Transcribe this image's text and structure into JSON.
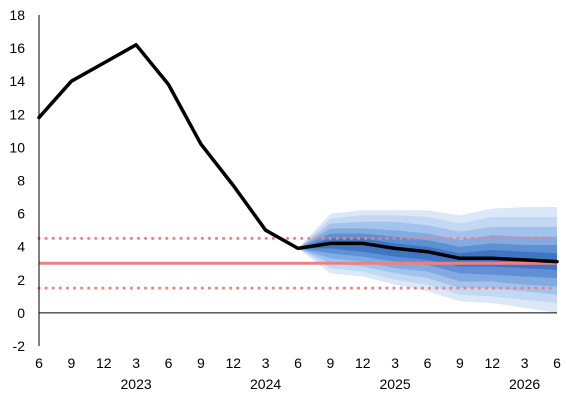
{
  "chart_data": {
    "type": "line",
    "title": "",
    "xlabel": "",
    "ylabel": "",
    "ylim": [
      -2,
      18
    ],
    "y_ticks": [
      "-2",
      "0",
      "2",
      "4",
      "6",
      "8",
      "10",
      "12",
      "14",
      "16",
      "18"
    ],
    "x_tick_labels": [
      "6",
      "9",
      "12",
      "3",
      "6",
      "9",
      "12",
      "3",
      "6",
      "9",
      "12",
      "3",
      "6",
      "9",
      "12",
      "3",
      "6"
    ],
    "year_labels": [
      {
        "label": "2023",
        "index": 3
      },
      {
        "label": "2024",
        "index": 7
      },
      {
        "label": "2025",
        "index": 11
      },
      {
        "label": "2026",
        "index": 15
      }
    ],
    "grid": false,
    "legend": "none",
    "series": [
      {
        "values": [
          11.8,
          14.0,
          15.1,
          16.2,
          13.8,
          10.2,
          7.7,
          5.0,
          3.9,
          4.2,
          4.2,
          3.9,
          3.7,
          3.3,
          3.3,
          3.2,
          3.1
        ],
        "color": "#000000",
        "start_index": 0
      }
    ],
    "reference_lines": [
      {
        "y": 3.0,
        "style": "solid",
        "color": "#f08080"
      },
      {
        "y": 4.5,
        "style": "dotted",
        "color": "#f08080"
      },
      {
        "y": 1.5,
        "style": "dotted",
        "color": "#f08080"
      }
    ],
    "fan": {
      "start_index": 8,
      "colors": [
        "#dbe8f8",
        "#c2d8f3",
        "#a4c3ec",
        "#82abe2",
        "#5e90d4",
        "#3f76c4"
      ],
      "upper": [
        [
          3.9,
          6.0,
          6.2,
          6.2,
          6.2,
          5.9,
          6.3,
          6.4,
          6.4
        ],
        [
          3.9,
          5.7,
          5.9,
          5.9,
          5.8,
          5.4,
          5.8,
          5.8,
          5.8
        ],
        [
          3.9,
          5.4,
          5.5,
          5.5,
          5.3,
          4.9,
          5.2,
          5.2,
          5.2
        ],
        [
          3.9,
          5.1,
          5.1,
          5.0,
          4.8,
          4.4,
          4.7,
          4.6,
          4.6
        ],
        [
          3.9,
          4.8,
          4.8,
          4.6,
          4.4,
          4.0,
          4.2,
          4.1,
          4.1
        ],
        [
          3.9,
          4.5,
          4.5,
          4.2,
          4.0,
          3.6,
          3.8,
          3.7,
          3.6
        ]
      ],
      "lower": [
        [
          3.9,
          2.4,
          2.2,
          1.7,
          1.3,
          0.7,
          0.6,
          0.3,
          0.0
        ],
        [
          3.9,
          2.7,
          2.5,
          2.0,
          1.7,
          1.1,
          1.0,
          0.8,
          0.6
        ],
        [
          3.9,
          3.0,
          2.8,
          2.4,
          2.1,
          1.5,
          1.5,
          1.3,
          1.1
        ],
        [
          3.9,
          3.3,
          3.1,
          2.7,
          2.5,
          1.9,
          1.9,
          1.7,
          1.6
        ],
        [
          3.9,
          3.6,
          3.4,
          3.1,
          2.9,
          2.4,
          2.3,
          2.2,
          2.1
        ],
        [
          3.9,
          3.9,
          3.7,
          3.4,
          3.2,
          2.8,
          2.8,
          2.7,
          2.6
        ]
      ]
    }
  }
}
